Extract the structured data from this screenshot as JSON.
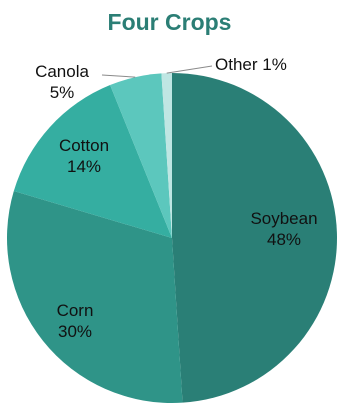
{
  "chart_data": {
    "type": "pie",
    "title": "Four Crops",
    "slices": [
      {
        "label": "Soybean",
        "value": 48,
        "value_label": "48%",
        "color": "#2a7f76"
      },
      {
        "label": "Corn",
        "value": 30,
        "value_label": "30%",
        "color": "#2f9488"
      },
      {
        "label": "Cotton",
        "value": 14,
        "value_label": "14%",
        "color": "#35aea1"
      },
      {
        "label": "Canola",
        "value": 5,
        "value_label": "5%",
        "color": "#5cc7bd"
      },
      {
        "label": "Other",
        "value": 1,
        "value_label": "1%",
        "color": "#bfe6e3"
      }
    ],
    "legend": "none",
    "label_style": "inside labels; Canola and Other labeled outside with leader lines"
  },
  "colors": {
    "title": "#2b7e75",
    "label_text": "#111111",
    "leader_line": "#8a8a8a"
  }
}
